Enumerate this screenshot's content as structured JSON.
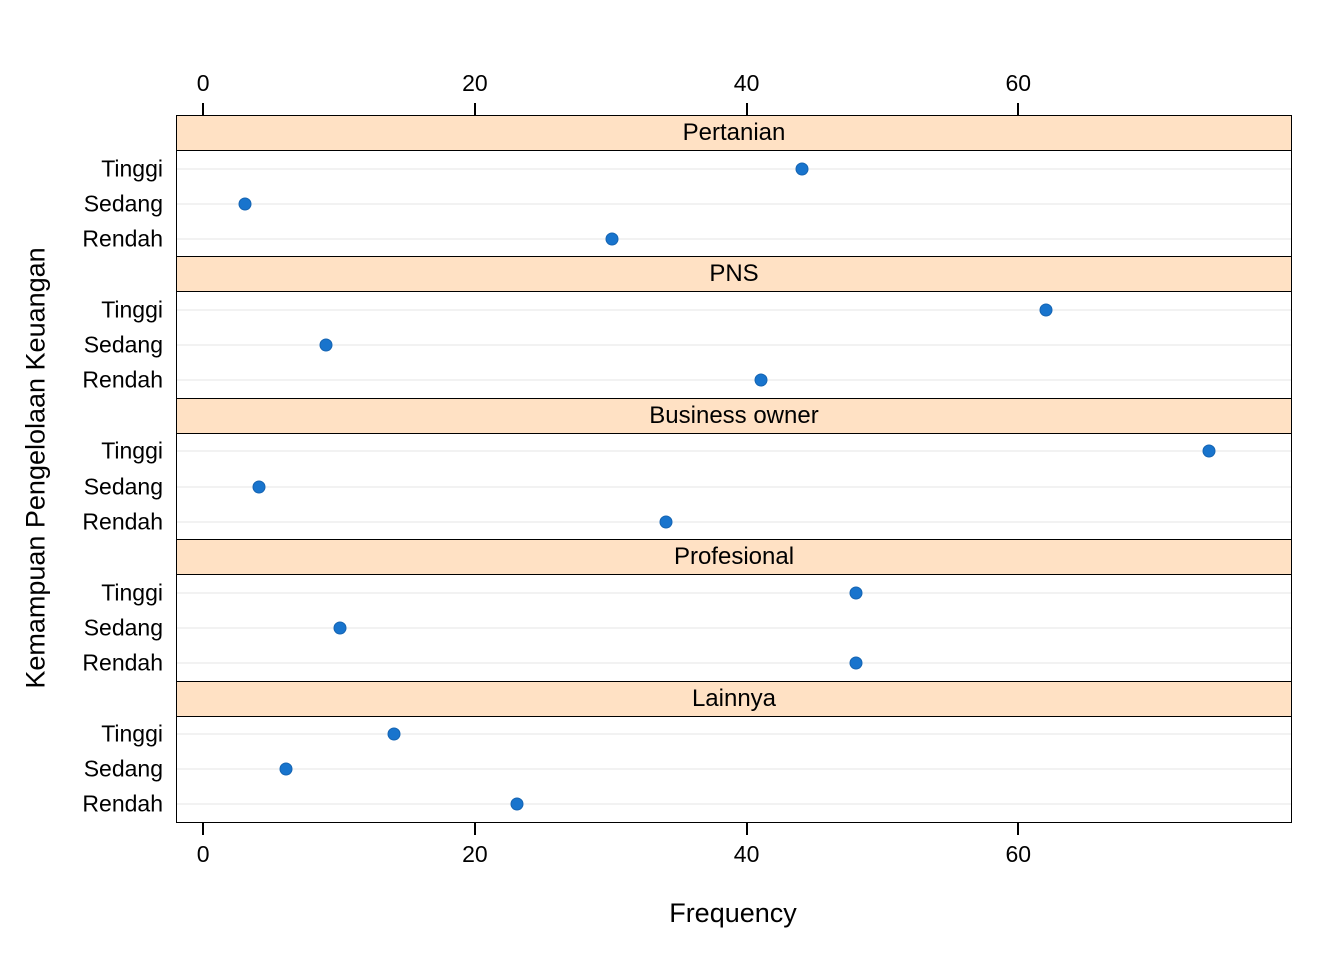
{
  "chart_data": {
    "type": "scatter",
    "subtype": "lattice-dotplot",
    "title": "",
    "xlabel": "Frequency",
    "ylabel": "Kemampuan Pengelolaan Keuangan",
    "x_ticks": [
      0,
      20,
      40,
      60
    ],
    "xlim": [
      -2,
      80
    ],
    "grid": "horizontal-light",
    "legend": "none",
    "categories": [
      "Tinggi",
      "Sedang",
      "Rendah"
    ],
    "panels": [
      {
        "label": "Pertanian",
        "values": {
          "Tinggi": 44,
          "Sedang": 3,
          "Rendah": 30
        }
      },
      {
        "label": "PNS",
        "values": {
          "Tinggi": 62,
          "Sedang": 9,
          "Rendah": 41
        }
      },
      {
        "label": "Business owner",
        "values": {
          "Tinggi": 74,
          "Sedang": 4,
          "Rendah": 34
        }
      },
      {
        "label": "Profesional",
        "values": {
          "Tinggi": 48,
          "Sedang": 10,
          "Rendah": 48
        }
      },
      {
        "label": "Lainnya",
        "values": {
          "Tinggi": 14,
          "Sedang": 6,
          "Rendah": 23
        }
      }
    ],
    "colors": {
      "point": "#1874CD",
      "point_border": "#1564B2",
      "strip_bg": "#FFE1C4",
      "grid": "#E6E6E6",
      "border": "#000000",
      "background": "#FFFFFF"
    }
  }
}
